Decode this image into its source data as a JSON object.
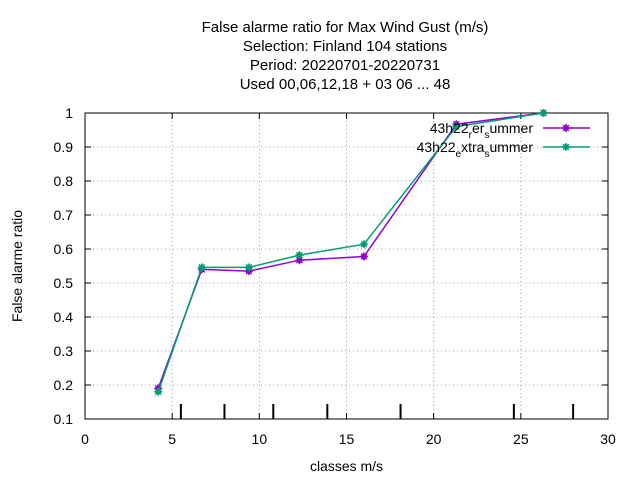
{
  "chart_data": {
    "type": "line",
    "title_lines": [
      "False alarme ratio  for Max Wind Gust (m/s)",
      "Selection: Finland    104 stations",
      "Period: 20220701-20220731",
      "Used  00,06,12,18  + 03 06 ... 48"
    ],
    "xlabel": "classes m/s",
    "ylabel": "False alarme ratio",
    "xlim": [
      0,
      30
    ],
    "ylim": [
      0.1,
      1.0
    ],
    "x_ticks": [
      "0",
      "5",
      "10",
      "15",
      "20",
      "25",
      "30"
    ],
    "y_ticks": [
      "0.1",
      "0.2",
      "0.3",
      "0.4",
      "0.5",
      "0.6",
      "0.7",
      "0.8",
      "0.9",
      "1"
    ],
    "grid": true,
    "legend_position": "top-right",
    "series": [
      {
        "name_main": "43h22",
        "name_sub": "r",
        "name_rest": "er",
        "name_sub2": "s",
        "name_end": "ummer",
        "color": "#9400d3",
        "x": [
          4.2,
          6.7,
          9.4,
          12.3,
          16.0,
          21.3,
          26.3
        ],
        "y": [
          0.19,
          0.54,
          0.535,
          0.567,
          0.578,
          0.967,
          1.0
        ]
      },
      {
        "name_main": "43h22",
        "name_sub": "e",
        "name_rest": "xtra",
        "name_sub2": "s",
        "name_end": "ummer",
        "color": "#009e73",
        "x": [
          4.2,
          6.7,
          9.4,
          12.3,
          16.0,
          21.3,
          26.3
        ],
        "y": [
          0.18,
          0.546,
          0.546,
          0.582,
          0.614,
          0.96,
          1.0
        ]
      }
    ],
    "rug_x": [
      5.5,
      8.0,
      10.8,
      13.9,
      18.1,
      24.6,
      28.0
    ]
  }
}
